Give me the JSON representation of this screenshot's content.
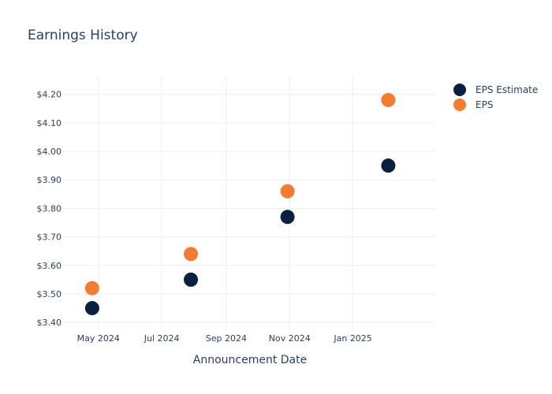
{
  "chart_data": {
    "type": "scatter",
    "title": "Earnings History",
    "xlabel": "Announcement Date",
    "ylabel": "",
    "x_ticks": [
      {
        "date": "2024-05-01",
        "label": "May 2024"
      },
      {
        "date": "2024-07-01",
        "label": "Jul 2024"
      },
      {
        "date": "2024-09-01",
        "label": "Sep 2024"
      },
      {
        "date": "2024-11-01",
        "label": "Nov 2024"
      },
      {
        "date": "2025-01-01",
        "label": "Jan 2025"
      }
    ],
    "xlim": [
      "2024-03-28",
      "2025-03-22"
    ],
    "y_ticks": [
      3.4,
      3.5,
      3.6,
      3.7,
      3.8,
      3.9,
      4.0,
      4.1,
      4.2
    ],
    "y_tick_labels": [
      "$3.40",
      "$3.50",
      "$3.60",
      "$3.70",
      "$3.80",
      "$3.90",
      "$4.00",
      "$4.10",
      "$4.20"
    ],
    "ylim": [
      3.37,
      4.26
    ],
    "grid": true,
    "legend_position": "top-right",
    "series": [
      {
        "name": "EPS Estimate",
        "color": "#0b1f3f",
        "points": [
          {
            "x": "2024-04-25",
            "y": 3.45
          },
          {
            "x": "2024-07-29",
            "y": 3.55
          },
          {
            "x": "2024-10-30",
            "y": 3.77
          },
          {
            "x": "2025-02-04",
            "y": 3.95
          }
        ]
      },
      {
        "name": "EPS",
        "color": "#f47c30",
        "points": [
          {
            "x": "2024-04-25",
            "y": 3.52
          },
          {
            "x": "2024-07-29",
            "y": 3.64
          },
          {
            "x": "2024-10-30",
            "y": 3.86
          },
          {
            "x": "2025-02-04",
            "y": 4.18
          }
        ]
      }
    ]
  }
}
